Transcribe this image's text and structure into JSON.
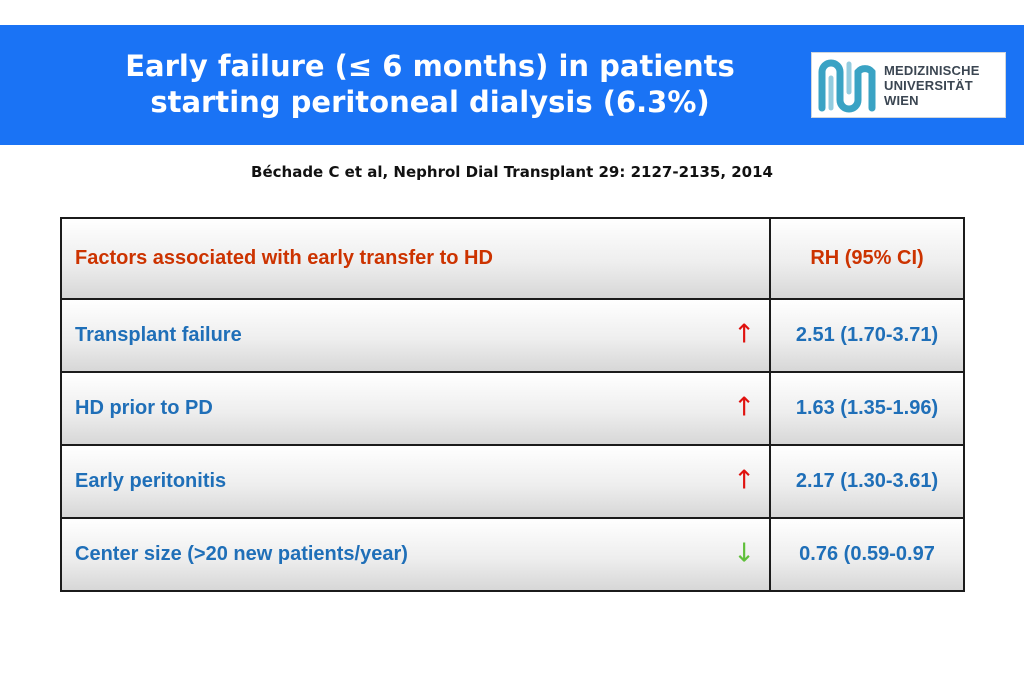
{
  "header": {
    "title_line1": "Early failure (≤ 6 months) in patients",
    "title_line2": "starting peritoneal dialysis (6.3%)",
    "background_color": "#1a73f5"
  },
  "logo": {
    "line1": "MEDIZINISCHE",
    "line2": "UNIVERSITÄT",
    "line3": "WIEN",
    "mark_color": "#3aa3c4"
  },
  "citation": "Béchade C et al, Nephrol Dial Transplant 29: 2127-2135, 2014",
  "table": {
    "header": {
      "factor": "Factors associated with early transfer to HD",
      "value": "RH (95% CI)"
    },
    "rows": [
      {
        "factor": "Transplant failure",
        "direction": "up",
        "arrow": "↑",
        "value": "2.51 (1.70-3.71)"
      },
      {
        "factor": "HD prior to PD",
        "direction": "up",
        "arrow": "↑",
        "value": "1.63 (1.35-1.96)"
      },
      {
        "factor": "Early peritonitis",
        "direction": "up",
        "arrow": "↑",
        "value": "2.17 (1.30-3.61)"
      },
      {
        "factor": "Center size (>20 new patients/year)",
        "direction": "down",
        "arrow": "↓",
        "value": "0.76 (0.59-0.97"
      }
    ],
    "colors": {
      "header_text": "#cc3300",
      "row_text": "#1f6fb8",
      "arrow_up": "#e0120f",
      "arrow_down": "#5fbf3a"
    }
  }
}
